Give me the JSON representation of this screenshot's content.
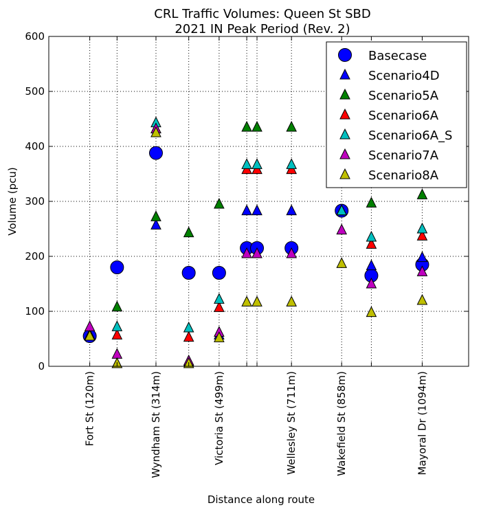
{
  "chart_data": {
    "type": "scatter",
    "title": "CRL Traffic Volumes: Queen St SBD",
    "subtitle": "2021 IN Peak Period (Rev. 2)",
    "xlabel": "Distance along route",
    "ylabel": "Volume (pcu)",
    "xlim": [
      0,
      1230
    ],
    "ylim": [
      0,
      600
    ],
    "yticks": [
      0,
      100,
      200,
      300,
      400,
      500,
      600
    ],
    "grid": true,
    "legend_position": "top-right",
    "xtick_labels": [
      {
        "x": 120,
        "label": "Fort St (120m)"
      },
      {
        "x": 314,
        "label": "Wyndham St (314m)"
      },
      {
        "x": 499,
        "label": "Victoria St (499m)"
      },
      {
        "x": 711,
        "label": "Wellesley St (711m)"
      },
      {
        "x": 858,
        "label": "Wakefield St (858m)"
      },
      {
        "x": 1094,
        "label": "Mayoral Dr (1094m)"
      }
    ],
    "gridline_x": [
      120,
      200,
      314,
      410,
      499,
      580,
      610,
      711,
      858,
      945,
      1094
    ],
    "series": [
      {
        "name": "Basecase",
        "marker": "circle",
        "color": "#0000ff",
        "points": [
          [
            120,
            55
          ],
          [
            200,
            180
          ],
          [
            314,
            388
          ],
          [
            410,
            170
          ],
          [
            499,
            170
          ],
          [
            580,
            215
          ],
          [
            610,
            215
          ],
          [
            711,
            215
          ],
          [
            858,
            283
          ],
          [
            945,
            165
          ],
          [
            1094,
            185
          ]
        ]
      },
      {
        "name": "Scenario4D",
        "marker": "triangle",
        "color": "#0000ff",
        "points": [
          [
            120,
            57
          ],
          [
            200,
            5
          ],
          [
            314,
            257
          ],
          [
            410,
            8
          ],
          [
            499,
            57
          ],
          [
            580,
            283
          ],
          [
            610,
            283
          ],
          [
            711,
            283
          ],
          [
            858,
            283
          ],
          [
            945,
            183
          ],
          [
            1094,
            198
          ]
        ]
      },
      {
        "name": "Scenario5A",
        "marker": "triangle",
        "color": "#008000",
        "points": [
          [
            120,
            57
          ],
          [
            200,
            108
          ],
          [
            314,
            272
          ],
          [
            410,
            243
          ],
          [
            499,
            295
          ],
          [
            580,
            435
          ],
          [
            610,
            435
          ],
          [
            711,
            435
          ],
          [
            858,
            283
          ],
          [
            945,
            297
          ],
          [
            1094,
            312
          ]
        ]
      },
      {
        "name": "Scenario6A",
        "marker": "triangle",
        "color": "#ff0000",
        "points": [
          [
            120,
            57
          ],
          [
            200,
            57
          ],
          [
            314,
            432
          ],
          [
            410,
            53
          ],
          [
            499,
            107
          ],
          [
            580,
            358
          ],
          [
            610,
            358
          ],
          [
            711,
            358
          ],
          [
            858,
            283
          ],
          [
            945,
            222
          ],
          [
            1094,
            237
          ]
        ]
      },
      {
        "name": "Scenario6A_S",
        "marker": "triangle",
        "color": "#00bfbf",
        "points": [
          [
            120,
            57
          ],
          [
            200,
            72
          ],
          [
            314,
            443
          ],
          [
            410,
            70
          ],
          [
            499,
            122
          ],
          [
            580,
            367
          ],
          [
            610,
            367
          ],
          [
            711,
            367
          ],
          [
            858,
            283
          ],
          [
            945,
            235
          ],
          [
            1094,
            250
          ]
        ]
      },
      {
        "name": "Scenario7A",
        "marker": "triangle",
        "color": "#bf00bf",
        "points": [
          [
            120,
            72
          ],
          [
            200,
            22
          ],
          [
            314,
            432
          ],
          [
            410,
            10
          ],
          [
            499,
            62
          ],
          [
            580,
            205
          ],
          [
            610,
            205
          ],
          [
            711,
            205
          ],
          [
            858,
            248
          ],
          [
            945,
            150
          ],
          [
            1094,
            172
          ]
        ]
      },
      {
        "name": "Scenario8A",
        "marker": "triangle",
        "color": "#bfbf00",
        "points": [
          [
            120,
            55
          ],
          [
            200,
            5
          ],
          [
            314,
            425
          ],
          [
            410,
            5
          ],
          [
            499,
            52
          ],
          [
            580,
            117
          ],
          [
            610,
            117
          ],
          [
            711,
            117
          ],
          [
            858,
            187
          ],
          [
            945,
            98
          ],
          [
            1094,
            120
          ]
        ]
      }
    ]
  }
}
